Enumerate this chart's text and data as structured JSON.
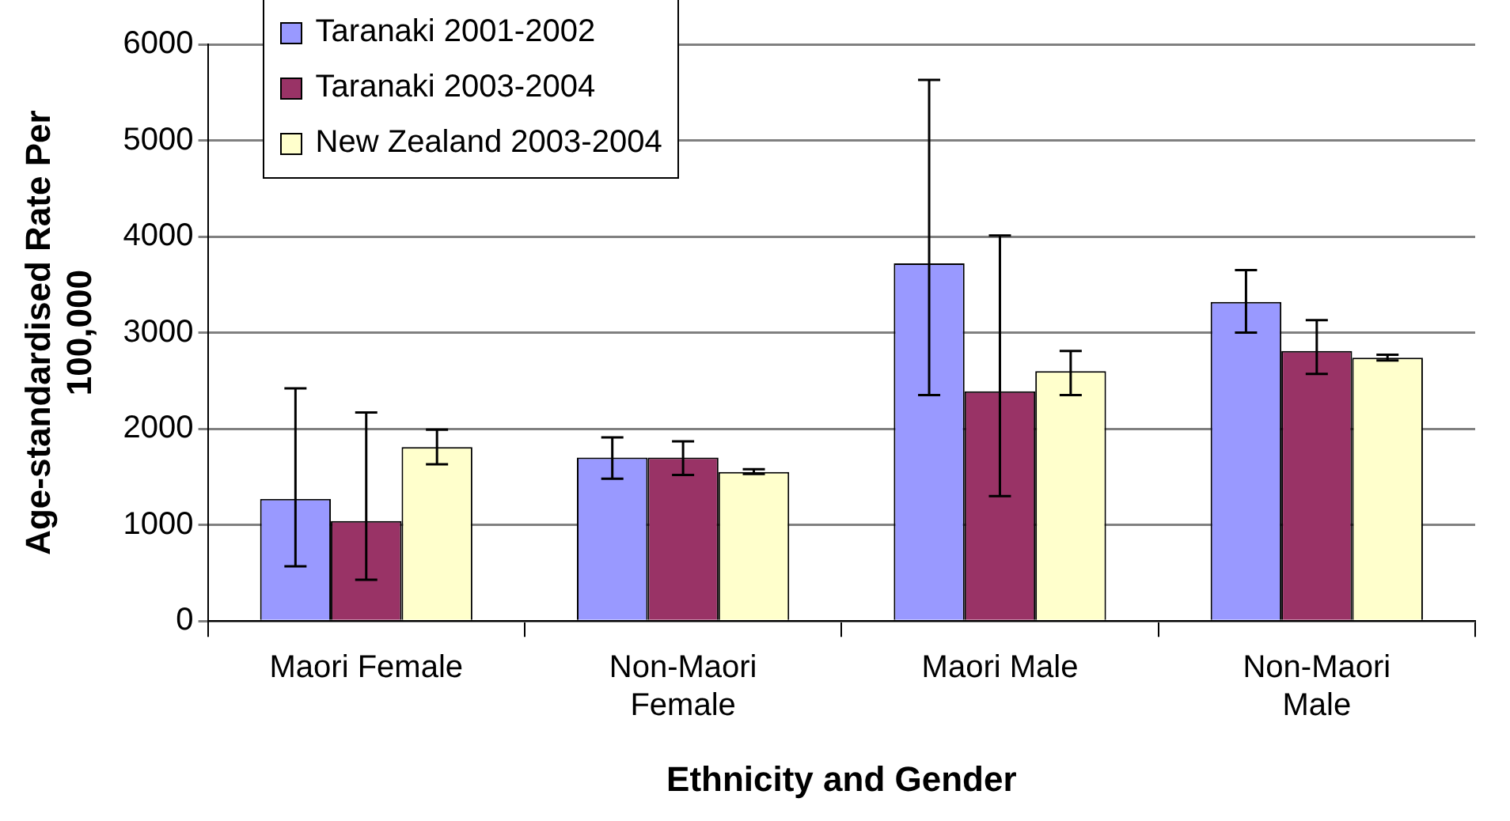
{
  "chart_data": {
    "type": "bar",
    "xlabel": "Ethnicity and Gender",
    "ylabel": "Age-standardised Rate Per 100,000",
    "categories": [
      "Maori Female",
      "Non-Maori Female",
      "Maori Male",
      "Non-Maori Male"
    ],
    "series": [
      {
        "name": "Taranaki 2001-2002",
        "color": "#9999ff",
        "values": [
          1270,
          1700,
          3720,
          3320
        ],
        "errors": [
          [
            570,
            2420
          ],
          [
            1480,
            1910
          ],
          [
            2350,
            5630
          ],
          [
            3000,
            3650
          ]
        ]
      },
      {
        "name": "Taranaki 2003-2004",
        "color": "#993366",
        "values": [
          1040,
          1700,
          2390,
          2810
        ],
        "errors": [
          [
            430,
            2170
          ],
          [
            1520,
            1870
          ],
          [
            1300,
            4010
          ],
          [
            2570,
            3130
          ]
        ]
      },
      {
        "name": "New Zealand 2003-2004",
        "color": "#ffffcc",
        "values": [
          1810,
          1550,
          2600,
          2740
        ],
        "errors": [
          [
            1630,
            1990
          ],
          [
            1530,
            1580
          ],
          [
            2350,
            2810
          ],
          [
            2710,
            2770
          ]
        ]
      }
    ],
    "ylim": [
      0,
      6000
    ],
    "yticks": [
      0,
      1000,
      2000,
      3000,
      4000,
      5000,
      6000
    ],
    "grid": "y",
    "legend": "top left"
  }
}
